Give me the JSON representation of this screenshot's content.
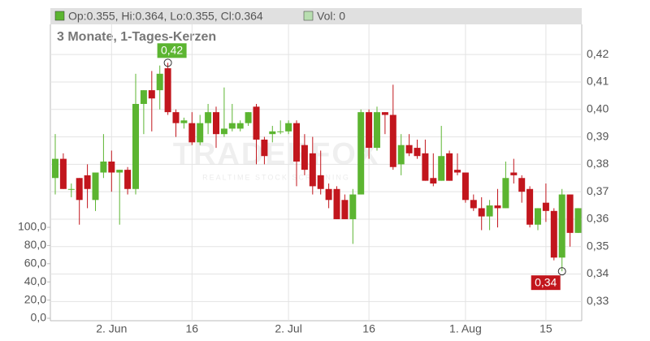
{
  "chart_data": {
    "type": "candlestick",
    "header": "Op:0.355, Hi:0.364, Lo:0.355, Cl:0.364",
    "volume_header": "Vol: 0",
    "subtitle": "3 Monate, 1-Tages-Kerzen",
    "watermark": "TRADERFOX",
    "watermark_sub": "REALTIME STOCK SCREENING",
    "up_color": "#5cb531",
    "down_color": "#c2161d",
    "categories": [
      null,
      null,
      null,
      null,
      null,
      null,
      null,
      "2. Jun",
      null,
      null,
      null,
      null,
      null,
      null,
      null,
      null,
      null,
      "16",
      null,
      null,
      null,
      null,
      null,
      null,
      null,
      null,
      null,
      null,
      null,
      "2. Jul",
      null,
      null,
      null,
      null,
      null,
      null,
      null,
      null,
      null,
      "16",
      null,
      null,
      null,
      null,
      null,
      null,
      null,
      null,
      null,
      null,
      null,
      "1. Aug",
      null,
      null,
      null,
      null,
      null,
      null,
      null,
      null,
      null,
      "15",
      null,
      null,
      null,
      null
    ],
    "open": [
      0.375,
      0.382,
      0.371,
      0.375,
      0.376,
      0.367,
      0.377,
      0.381,
      0.377,
      0.378,
      0.371,
      0.402,
      0.407,
      0.407,
      0.415,
      0.399,
      0.395,
      0.395,
      0.388,
      0.395,
      0.399,
      0.391,
      0.393,
      0.393,
      0.395,
      0.401,
      0.389,
      0.391,
      0.392,
      0.392,
      0.395,
      0.387,
      0.384,
      0.376,
      0.371,
      0.371,
      0.367,
      0.36,
      0.369,
      0.399,
      0.386,
      0.399,
      0.398,
      0.38,
      0.387,
      0.386,
      0.384,
      0.375,
      0.374,
      0.384,
      0.378,
      0.377,
      0.367,
      0.364,
      0.361,
      0.365,
      0.364,
      0.377,
      0.375,
      0.371,
      0.358,
      0.366,
      0.363,
      0.346,
      0.369,
      0.355
    ],
    "high": [
      0.391,
      0.384,
      0.373,
      0.375,
      0.38,
      0.377,
      0.391,
      0.385,
      0.378,
      0.379,
      0.413,
      0.407,
      0.414,
      0.416,
      0.417,
      0.4,
      0.397,
      0.399,
      0.398,
      0.402,
      0.401,
      0.408,
      0.402,
      0.396,
      0.399,
      0.402,
      0.39,
      0.394,
      0.396,
      0.396,
      0.396,
      0.391,
      0.39,
      0.385,
      0.373,
      0.372,
      0.369,
      0.371,
      0.4,
      0.4,
      0.401,
      0.399,
      0.409,
      0.391,
      0.391,
      0.389,
      0.389,
      0.384,
      0.394,
      0.385,
      0.384,
      0.377,
      0.369,
      0.368,
      0.367,
      0.371,
      0.381,
      0.382,
      0.376,
      0.372,
      0.364,
      0.373,
      0.364,
      0.371,
      0.369,
      0.364
    ],
    "low": [
      0.369,
      0.371,
      0.368,
      0.358,
      0.364,
      0.363,
      0.375,
      0.37,
      0.358,
      0.369,
      0.369,
      0.391,
      0.392,
      0.4,
      0.398,
      0.39,
      0.393,
      0.387,
      0.387,
      0.391,
      0.386,
      0.39,
      0.392,
      0.392,
      0.394,
      0.38,
      0.38,
      0.388,
      0.391,
      0.391,
      0.372,
      0.376,
      0.369,
      0.369,
      0.364,
      0.36,
      0.36,
      0.351,
      0.369,
      0.382,
      0.385,
      0.391,
      0.378,
      0.376,
      0.383,
      0.382,
      0.374,
      0.372,
      0.374,
      0.374,
      0.376,
      0.366,
      0.363,
      0.356,
      0.356,
      0.357,
      0.364,
      0.373,
      0.366,
      0.357,
      0.356,
      0.359,
      0.345,
      0.341,
      0.35,
      0.355
    ],
    "close": [
      0.382,
      0.371,
      0.371,
      0.367,
      0.371,
      0.377,
      0.381,
      0.377,
      0.378,
      0.371,
      0.402,
      0.407,
      0.404,
      0.413,
      0.399,
      0.395,
      0.396,
      0.388,
      0.395,
      0.399,
      0.391,
      0.393,
      0.395,
      0.395,
      0.399,
      0.389,
      0.383,
      0.392,
      0.392,
      0.395,
      0.381,
      0.378,
      0.372,
      0.371,
      0.367,
      0.36,
      0.36,
      0.369,
      0.399,
      0.386,
      0.399,
      0.398,
      0.379,
      0.387,
      0.384,
      0.383,
      0.374,
      0.373,
      0.383,
      0.374,
      0.377,
      0.367,
      0.364,
      0.361,
      0.365,
      0.364,
      0.375,
      0.376,
      0.37,
      0.358,
      0.364,
      0.363,
      0.346,
      0.369,
      0.355,
      0.364
    ],
    "ylim": [
      0.323,
      0.431
    ],
    "yticks": [
      {
        "value": 0.33,
        "label": "0,33"
      },
      {
        "value": 0.34,
        "label": "0,34"
      },
      {
        "value": 0.35,
        "label": "0,35"
      },
      {
        "value": 0.36,
        "label": "0,36"
      },
      {
        "value": 0.37,
        "label": "0,37"
      },
      {
        "value": 0.38,
        "label": "0,38"
      },
      {
        "value": 0.39,
        "label": "0,39"
      },
      {
        "value": 0.4,
        "label": "0,40"
      },
      {
        "value": 0.41,
        "label": "0,41"
      },
      {
        "value": 0.42,
        "label": "0,42"
      }
    ],
    "vol_ylim": [
      0,
      100
    ],
    "vol_ticks": [
      {
        "value": 0,
        "label": "0,0"
      },
      {
        "value": 20,
        "label": "20,0"
      },
      {
        "value": 40,
        "label": "40,0"
      },
      {
        "value": 60,
        "label": "60,0"
      },
      {
        "value": 80,
        "label": "80,0"
      },
      {
        "value": 100,
        "label": "100,0"
      }
    ],
    "annotations": {
      "high": {
        "value": 0.417,
        "label": "0,42"
      },
      "low": {
        "value": 0.341,
        "label": "0,34"
      }
    },
    "grid": true
  }
}
